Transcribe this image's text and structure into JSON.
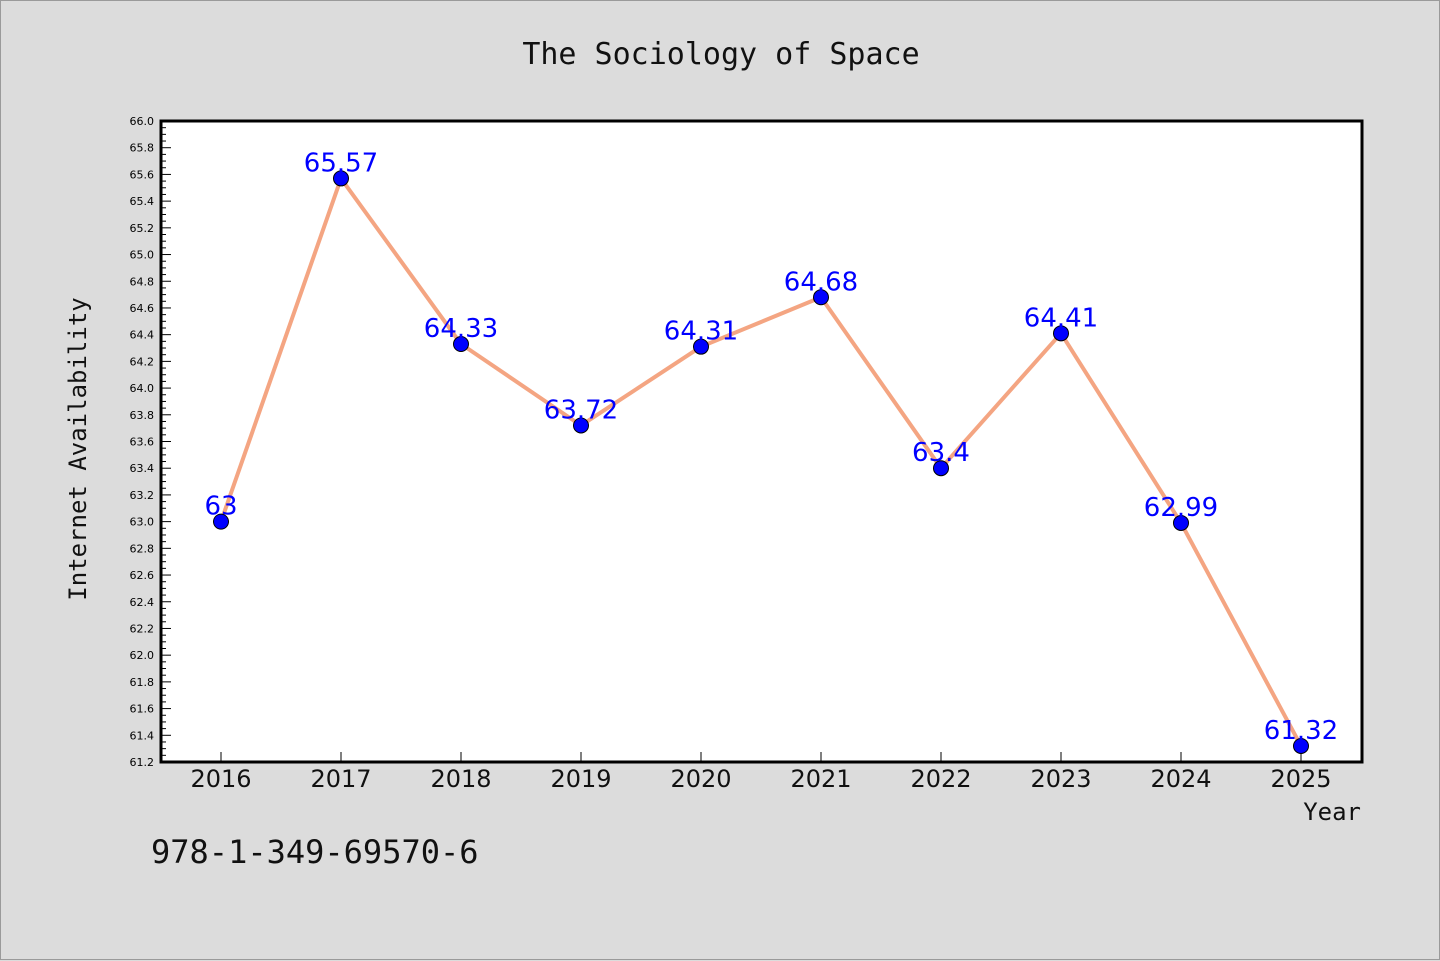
{
  "isbn": "978-1-349-69570-6",
  "chart_data": {
    "type": "line",
    "title": "The Sociology of Space",
    "xlabel": "Year",
    "ylabel": "Internet Availability",
    "categories": [
      "2016",
      "2017",
      "2018",
      "2019",
      "2020",
      "2021",
      "2022",
      "2023",
      "2024",
      "2025"
    ],
    "series": [
      {
        "values": [
          63,
          65.57,
          64.33,
          63.72,
          64.31,
          64.68,
          63.4,
          64.41,
          62.99,
          61.32
        ],
        "data_labels": [
          "63",
          "65.57",
          "64.33",
          "63.72",
          "64.31",
          "64.68",
          "63.4",
          "64.41",
          "62.99",
          "61.32"
        ],
        "line_color": "#f4a582",
        "marker_color": "#0000ff"
      }
    ],
    "ylim": [
      61.2,
      66.0
    ],
    "yticks": [
      "61.2",
      "61.4",
      "61.6",
      "61.8",
      "62.0",
      "62.2",
      "62.4",
      "62.6",
      "62.8",
      "63.0",
      "63.2",
      "63.4",
      "63.6",
      "63.8",
      "64.0",
      "64.2",
      "64.4",
      "64.6",
      "64.8",
      "65.0",
      "65.2",
      "65.4",
      "65.6",
      "65.8",
      "66.0"
    ],
    "grid": false,
    "legend": "none",
    "label_color": "#0000ff"
  }
}
